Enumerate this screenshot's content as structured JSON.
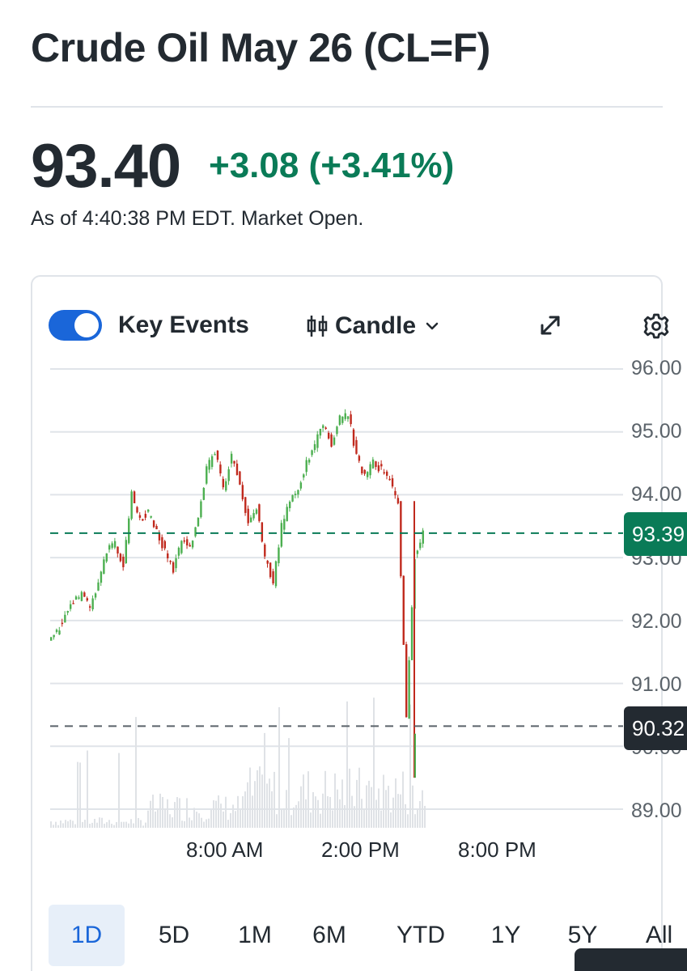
{
  "header": {
    "title": "Crude Oil May 26 (CL=F)"
  },
  "quote": {
    "price": "93.40",
    "change": "+3.08 (+3.41%)",
    "as_of": "As of 4:40:38 PM EDT. Market Open."
  },
  "controls": {
    "key_events_label": "Key Events",
    "key_events_on": true,
    "chart_type_label": "Candle"
  },
  "icons": {
    "chart_type": "candlestick-icon",
    "dropdown": "chevron-down-icon",
    "expand": "expand-icon",
    "settings": "gear-icon"
  },
  "colors": {
    "up": "#0a7b57",
    "candle_up": "#4caf50",
    "candle_down": "#c0291d",
    "accent": "#1a66d9"
  },
  "axis": {
    "y_ticks": [
      "96.00",
      "95.00",
      "94.00",
      "93.00",
      "92.00",
      "91.00",
      "90.00",
      "89.00"
    ],
    "x_ticks": [
      "8:00 AM",
      "2:00 PM",
      "8:00 PM"
    ]
  },
  "tags": {
    "current": "93.39",
    "previous_close": "90.32"
  },
  "ranges": [
    {
      "label": "1D",
      "active": true
    },
    {
      "label": "5D",
      "active": false
    },
    {
      "label": "1M",
      "active": false
    },
    {
      "label": "6M",
      "active": false
    },
    {
      "label": "YTD",
      "active": false
    },
    {
      "label": "1Y",
      "active": false
    },
    {
      "label": "5Y",
      "active": false
    },
    {
      "label": "All",
      "active": false
    }
  ],
  "chart_data": {
    "type": "line",
    "ylim": [
      89,
      96
    ],
    "x_ticks": [
      "8:00 AM",
      "2:00 PM",
      "8:00 PM"
    ],
    "reference_lines": [
      {
        "label": "93.39",
        "value": 93.39
      },
      {
        "label": "90.32",
        "value": 90.32
      }
    ],
    "series": [
      {
        "values": [
          91.7,
          91.8,
          92.1,
          92.3,
          92.4,
          92.2,
          92.6,
          93.1,
          93.2,
          92.9,
          94.0,
          93.6,
          93.7,
          93.4,
          93.1,
          92.8,
          93.3,
          93.2,
          93.6,
          94.4,
          94.7,
          94.1,
          94.6,
          94.2,
          93.5,
          93.8,
          93.0,
          92.6,
          93.5,
          93.9,
          94.1,
          94.5,
          94.8,
          95.1,
          94.8,
          95.2,
          95.3,
          94.6,
          94.3,
          94.5,
          94.4,
          94.2,
          93.9,
          90.5,
          93.0,
          93.4
        ]
      }
    ]
  }
}
